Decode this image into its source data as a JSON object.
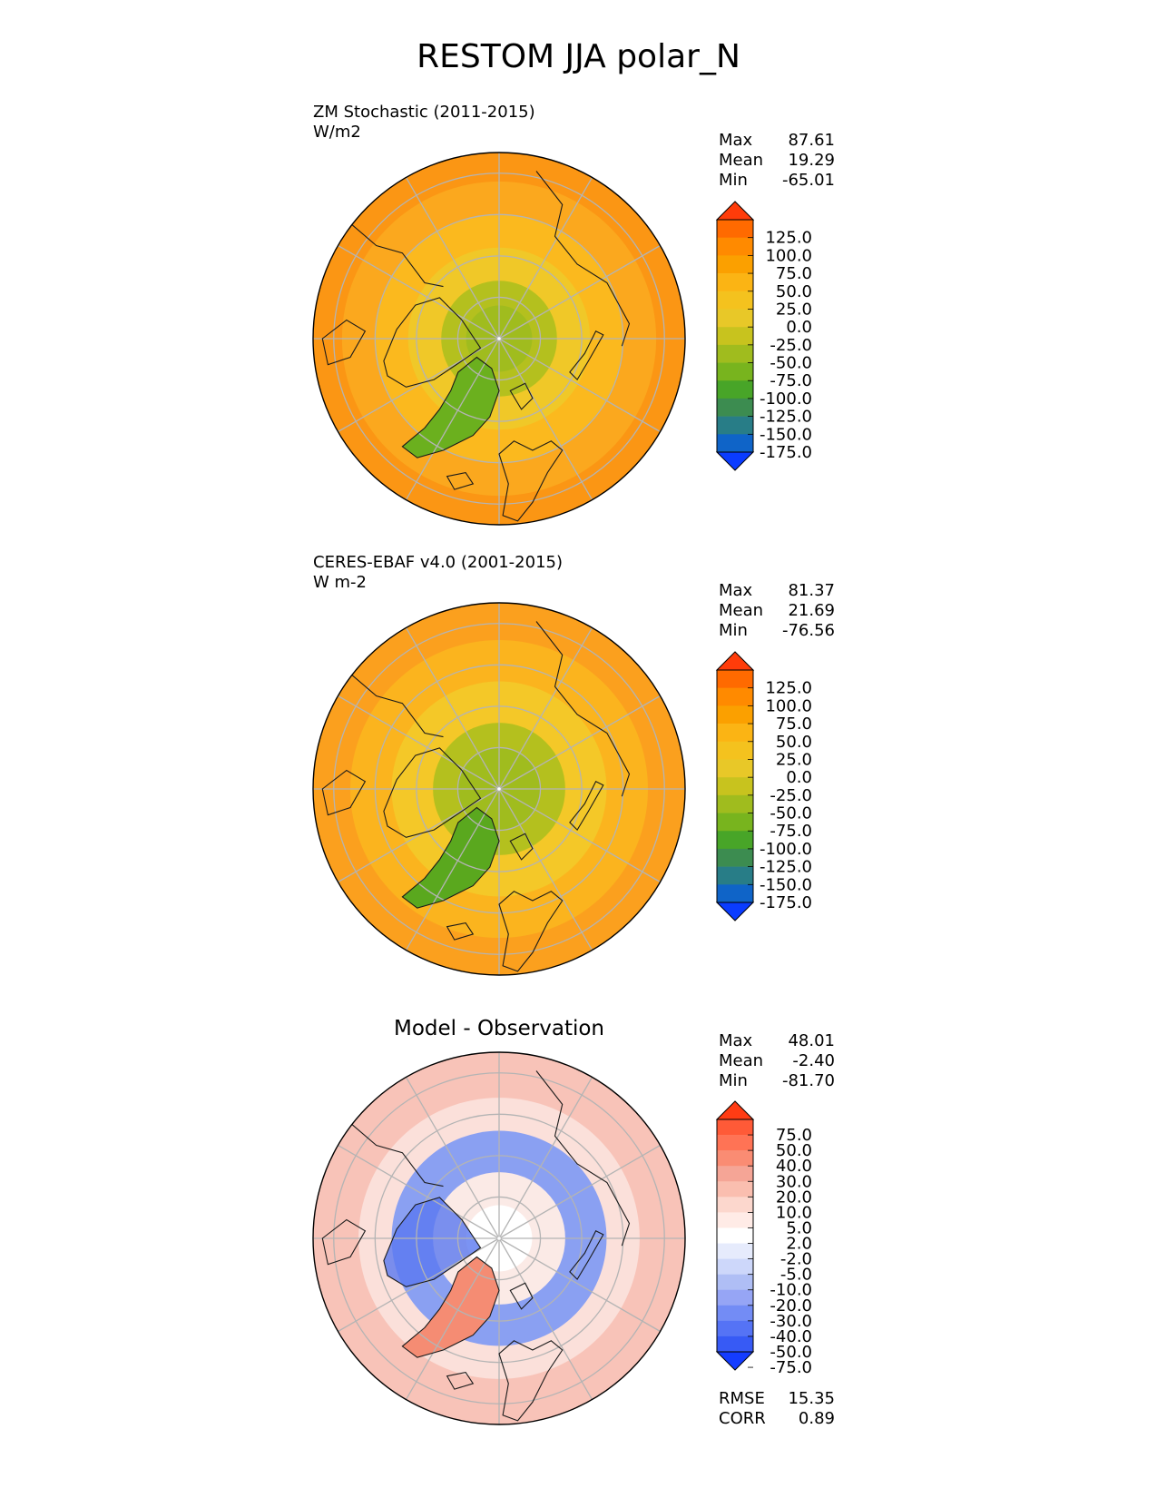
{
  "title": "RESTOM JJA polar_N",
  "panels": [
    {
      "name": "ZM Stochastic (2011-2015)",
      "units": "W/m2",
      "stats": [
        {
          "label": "Max",
          "value": "87.61"
        },
        {
          "label": "Mean",
          "value": "19.29"
        },
        {
          "label": "Min",
          "value": "-65.01"
        }
      ],
      "colorbar": {
        "ticks": [
          "125.0",
          "100.0",
          "75.0",
          "50.0",
          "25.0",
          "0.0",
          "-25.0",
          "-50.0",
          "-75.0",
          "-100.0",
          "-125.0",
          "-150.0",
          "-175.0"
        ],
        "colors": [
          "#ff3c0a",
          "#ff6a00",
          "#ff8a00",
          "#fba000",
          "#fbb414",
          "#f4c21e",
          "#e8c828",
          "#c8c31e",
          "#a0bc1e",
          "#78b41e",
          "#48a528",
          "#3c8c50",
          "#287d87",
          "#0f64c8",
          "#0a3cff"
        ]
      },
      "zones": [
        {
          "colatitude_deg": 45,
          "color": "#fb9614"
        },
        {
          "colatitude_deg": 38,
          "color": "#fba81e"
        },
        {
          "colatitude_deg": 30,
          "color": "#fbb91e"
        },
        {
          "colatitude_deg": 22,
          "color": "#f0c828"
        },
        {
          "colatitude_deg": 14,
          "color": "#b4c01e"
        },
        {
          "colatitude_deg": 8,
          "color": "#a0bc1e"
        }
      ],
      "greenland_color": "#6bb01e"
    },
    {
      "name": "CERES-EBAF v4.0 (2001-2015)",
      "units": "W m-2",
      "stats": [
        {
          "label": "Max",
          "value": "81.37"
        },
        {
          "label": "Mean",
          "value": "21.69"
        },
        {
          "label": "Min",
          "value": "-76.56"
        }
      ],
      "colorbar": {
        "ticks": [
          "125.0",
          "100.0",
          "75.0",
          "50.0",
          "25.0",
          "0.0",
          "-25.0",
          "-50.0",
          "-75.0",
          "-100.0",
          "-125.0",
          "-150.0",
          "-175.0"
        ],
        "colors": [
          "#ff3c0a",
          "#ff6a00",
          "#ff8a00",
          "#fba000",
          "#fbb414",
          "#f4c21e",
          "#e8c828",
          "#c8c31e",
          "#a0bc1e",
          "#78b41e",
          "#48a528",
          "#3c8c50",
          "#287d87",
          "#0f64c8",
          "#0a3cff"
        ]
      },
      "zones": [
        {
          "colatitude_deg": 45,
          "color": "#fba01e"
        },
        {
          "colatitude_deg": 36,
          "color": "#fbb41e"
        },
        {
          "colatitude_deg": 26,
          "color": "#f4c828"
        },
        {
          "colatitude_deg": 16,
          "color": "#b4c01e"
        },
        {
          "colatitude_deg": 10,
          "color": "#a0bc1e"
        }
      ],
      "greenland_color": "#5aa81e"
    },
    {
      "name": "",
      "units": "",
      "chart_title": "Model - Observation",
      "stats": [
        {
          "label": "Max",
          "value": "48.01"
        },
        {
          "label": "Mean",
          "value": "-2.40"
        },
        {
          "label": "Min",
          "value": "-81.70"
        }
      ],
      "colorbar": {
        "ticks": [
          "75.0",
          "50.0",
          "40.0",
          "30.0",
          "20.0",
          "10.0",
          "5.0",
          "2.0",
          "-2.0",
          "-5.0",
          "-10.0",
          "-20.0",
          "-30.0",
          "-40.0",
          "-50.0",
          "-75.0"
        ],
        "colors": [
          "#ff3c14",
          "#ff5a37",
          "#ff7355",
          "#fa8c73",
          "#f5a596",
          "#fabeaf",
          "#fcd7cd",
          "#ffebe6",
          "#ffffff",
          "#e6ebfc",
          "#cdd7fa",
          "#afbef5",
          "#96a5f5",
          "#738cf5",
          "#5573f5",
          "#375af5",
          "#143cff"
        ]
      },
      "zones": [
        {
          "colatitude_deg": 45,
          "color": "#f8c3b8"
        },
        {
          "colatitude_deg": 34,
          "color": "#fbe0da"
        },
        {
          "colatitude_deg": 26,
          "color": "#8aa0f2"
        },
        {
          "colatitude_deg": 16,
          "color": "#fbeae6"
        },
        {
          "colatitude_deg": 8,
          "color": "#ffffff"
        }
      ],
      "greenland_color": "#f58c73",
      "extra_stats": [
        {
          "label": "RMSE",
          "value": "15.35"
        },
        {
          "label": "CORR",
          "value": "0.89"
        }
      ]
    }
  ],
  "map": {
    "projection": "north-polar-stereographic",
    "meridians_deg": [
      0,
      30,
      60,
      90,
      120,
      150,
      180,
      210,
      240,
      270,
      300,
      330
    ],
    "parallels_colatitude_deg": [
      10,
      20,
      30,
      40,
      50
    ],
    "boundary_latitude_deg": 45
  }
}
